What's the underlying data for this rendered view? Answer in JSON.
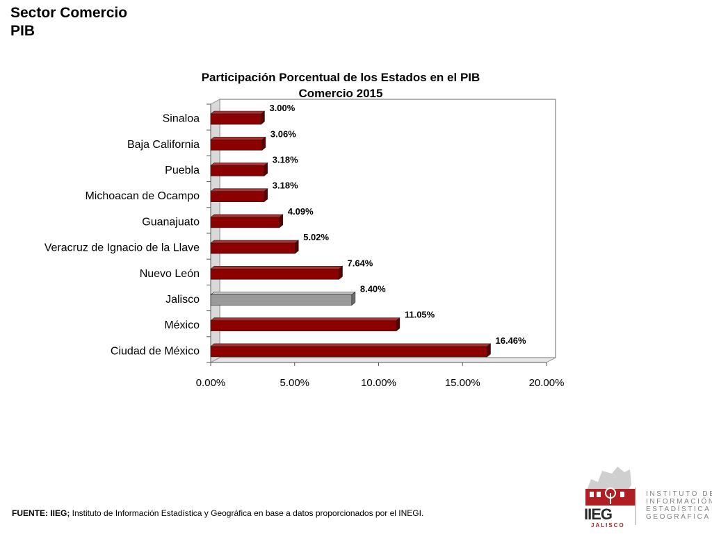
{
  "header": {
    "title_line1": "Sector Comercio",
    "title_line2": "PIB"
  },
  "chart_data": {
    "type": "bar",
    "orientation": "horizontal",
    "title": "Participación Porcentual de los Estados  en el PIB",
    "subtitle": "Comercio 2015",
    "categories": [
      "Sinaloa",
      "Baja California",
      "Puebla",
      "Michoacan de Ocampo",
      "Guanajuato",
      "Veracruz de Ignacio de la Llave",
      "Nuevo León",
      "Jalisco",
      "México",
      "Ciudad de México"
    ],
    "values": [
      3.0,
      3.06,
      3.18,
      3.18,
      4.09,
      5.02,
      7.64,
      8.4,
      11.05,
      16.46
    ],
    "data_labels": [
      "3.00%",
      "3.06%",
      "3.18%",
      "3.18%",
      "4.09%",
      "5.02%",
      "7.64%",
      "8.40%",
      "11.05%",
      "16.46%"
    ],
    "highlight": "Jalisco",
    "x_ticks": [
      "0.00%",
      "5.00%",
      "10.00%",
      "15.00%",
      "20.00%"
    ],
    "xlim": [
      0,
      20
    ],
    "xlabel": "",
    "ylabel": "",
    "grid": false,
    "colors": {
      "bar": "#8b0000",
      "bar_side": "#5a0000",
      "bar_top": "#b23030",
      "highlight": "#9a9a9a",
      "highlight_side": "#6e6e6e",
      "highlight_top": "#c0c0c0"
    }
  },
  "footer": {
    "source_label": "FUENTE: IIEG;",
    "source_text": " Instituto de Información Estadística y Geográfica en base a datos proporcionados por el INEGI."
  },
  "logo": {
    "name": "IIEG",
    "sub": "JALISCO",
    "lines": [
      "INSTITUTO  DE",
      "INFORMACIÓN",
      "ESTADÍSTICA Y",
      "GEOGRÁFICA"
    ]
  }
}
